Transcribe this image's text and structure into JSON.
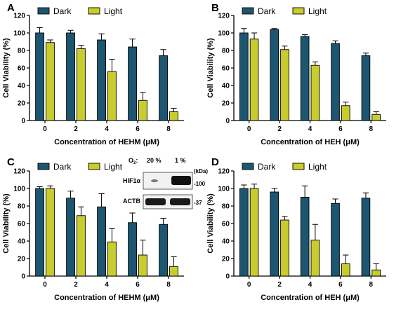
{
  "colors": {
    "dark": "#1d5670",
    "light": "#c8cc2d",
    "axis": "#000000"
  },
  "legend": {
    "dark": "Dark",
    "light": "Light"
  },
  "inset": {
    "o2_label": "O",
    "o2_subscript": "2",
    "o2_colon": ":",
    "lane1": "20 %",
    "lane2": "1 %",
    "kda_label": "(kDa)",
    "band1_label": "HIF1α",
    "band1_marker": "100",
    "band2_label": "ACTB",
    "band2_marker": "37"
  },
  "chart_data": [
    {
      "panel": "A",
      "type": "bar",
      "categories": [
        "0",
        "2",
        "4",
        "6",
        "8"
      ],
      "xlabel": "Concentration of HEHM (μM)",
      "ylabel": "Cell Viability (%)",
      "ylim": [
        0,
        120
      ],
      "yticks": [
        0,
        20,
        40,
        60,
        80,
        100,
        120
      ],
      "legend_position": "top-left",
      "series": [
        {
          "name": "Dark",
          "values": [
            100,
            100,
            92,
            84,
            74
          ],
          "errors": [
            6,
            3,
            7,
            9,
            7
          ]
        },
        {
          "name": "Light",
          "values": [
            89,
            82,
            56,
            23,
            10
          ],
          "errors": [
            3,
            4,
            14,
            9,
            4
          ]
        }
      ]
    },
    {
      "panel": "B",
      "type": "bar",
      "categories": [
        "0",
        "2",
        "4",
        "6",
        "8"
      ],
      "xlabel": "Concentration of HEH (μM)",
      "ylabel": "Cell Viability (%)",
      "ylim": [
        0,
        120
      ],
      "yticks": [
        0,
        20,
        40,
        60,
        80,
        100,
        120
      ],
      "legend_position": "top-left",
      "series": [
        {
          "name": "Dark",
          "values": [
            100,
            104,
            96,
            88,
            74
          ],
          "errors": [
            5,
            1,
            2,
            3,
            3
          ]
        },
        {
          "name": "Light",
          "values": [
            93,
            81,
            63,
            17,
            7
          ],
          "errors": [
            7,
            4,
            4,
            4,
            3
          ]
        }
      ]
    },
    {
      "panel": "C",
      "type": "bar",
      "categories": [
        "0",
        "2",
        "4",
        "6",
        "8"
      ],
      "xlabel": "Concentration of HEHM (μM)",
      "ylabel": "Cell Viability (%)",
      "ylim": [
        0,
        120
      ],
      "yticks": [
        0,
        20,
        40,
        60,
        80,
        100,
        120
      ],
      "legend_position": "top-left",
      "series": [
        {
          "name": "Dark",
          "values": [
            100,
            89,
            79,
            61,
            59
          ],
          "errors": [
            2,
            8,
            15,
            11,
            7
          ]
        },
        {
          "name": "Light",
          "values": [
            100,
            69,
            39,
            24,
            11
          ],
          "errors": [
            3,
            10,
            15,
            17,
            11
          ]
        }
      ]
    },
    {
      "panel": "D",
      "type": "bar",
      "categories": [
        "0",
        "2",
        "4",
        "6",
        "8"
      ],
      "xlabel": "Concentration of HEH (μM)",
      "ylabel": "Cell Viability (%)",
      "ylim": [
        0,
        120
      ],
      "yticks": [
        0,
        20,
        40,
        60,
        80,
        100,
        120
      ],
      "legend_position": "top-left",
      "series": [
        {
          "name": "Dark",
          "values": [
            100,
            96,
            90,
            83,
            89
          ],
          "errors": [
            4,
            4,
            13,
            5,
            6
          ]
        },
        {
          "name": "Light",
          "values": [
            100,
            64,
            41,
            14,
            7
          ],
          "errors": [
            5,
            4,
            18,
            10,
            7
          ]
        }
      ]
    }
  ]
}
